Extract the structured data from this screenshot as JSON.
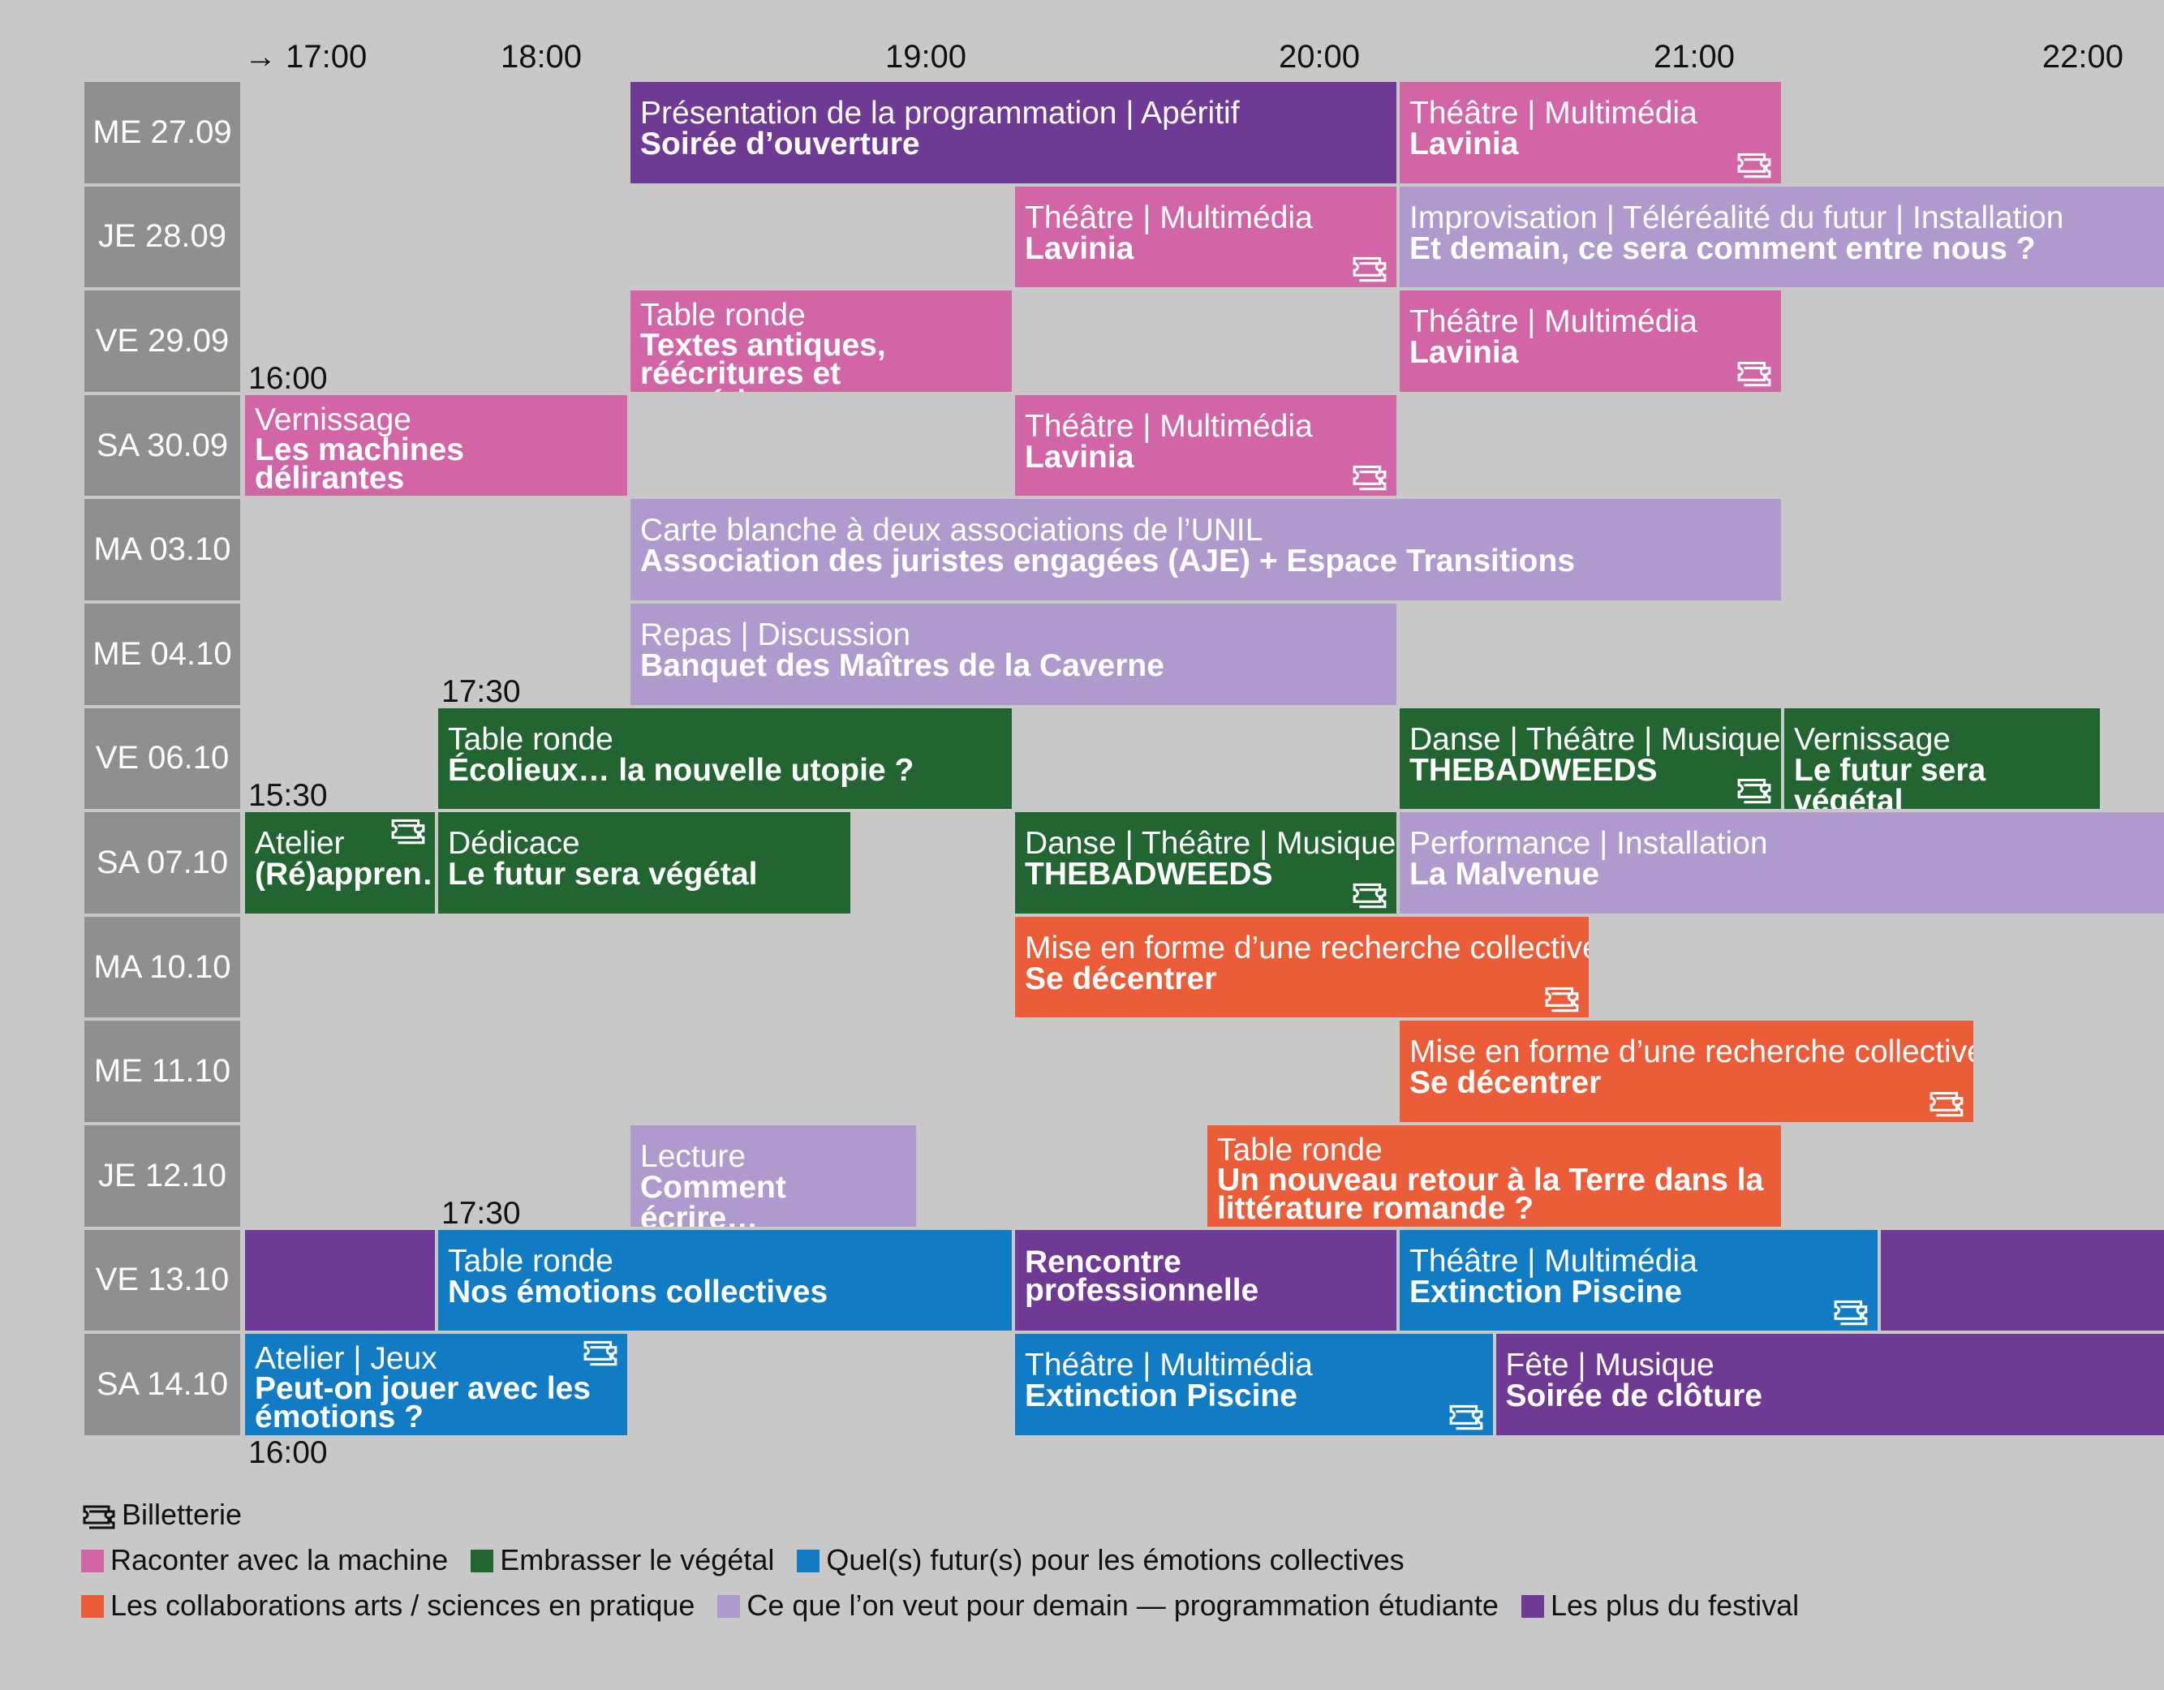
{
  "times": [
    "→ 17:00",
    "18:00",
    "19:00",
    "20:00",
    "21:00",
    "22:00"
  ],
  "colors": {
    "machine": "#d265a6",
    "vegetal": "#226530",
    "emotions": "#117cc4",
    "arts_sciences": "#ea5d38",
    "etudiante": "#b099cc",
    "plus": "#6e3a93",
    "day_bg": "#8f8f8f",
    "page_bg": "#c8c8c8"
  },
  "days": [
    "ME 27.09",
    "JE 28.09",
    "VE 29.09",
    "SA 30.09",
    "MA 03.10",
    "ME 04.10",
    "VE 06.10",
    "SA 07.10",
    "MA 10.10",
    "ME 11.10",
    "JE 12.10",
    "VE 13.10",
    "SA 14.10"
  ],
  "start_notes": [
    {
      "text": "16:00",
      "row": 3,
      "at": 16.0
    },
    {
      "text": "17:30",
      "row": 6,
      "at": 17.5
    },
    {
      "text": "15:30",
      "row": 7,
      "at": 15.5
    },
    {
      "text": "17:30",
      "row": 11,
      "at": 17.5
    },
    {
      "text": "16:00",
      "row": 12,
      "at": 16.0,
      "below": true
    }
  ],
  "events": [
    {
      "row": 0,
      "start": 18.0,
      "end": 20.0,
      "category": "Présentation de la programmation | Apéritif",
      "title": "Soirée d’ouverture",
      "color": "plus",
      "ticket": false
    },
    {
      "row": 0,
      "start": 20.0,
      "end": 21.0,
      "category": "Théâtre | Multimédia",
      "title": "Lavinia",
      "color": "machine",
      "ticket": true
    },
    {
      "row": 1,
      "start": 19.0,
      "end": 20.0,
      "category": "Théâtre | Multimédia",
      "title": "Lavinia",
      "color": "machine",
      "ticket": true
    },
    {
      "row": 1,
      "start": 20.0,
      "end": 22.0,
      "category": "Improvisation | Téléréalité du futur | Installation",
      "title": "Et demain, ce sera comment entre nous ?",
      "color": "etudiante",
      "ticket": false
    },
    {
      "row": 2,
      "start": 18.0,
      "end": 19.0,
      "category": "Table ronde",
      "title": "Textes antiques, réécritures et numérique",
      "color": "machine",
      "ticket": false,
      "multi": true
    },
    {
      "row": 2,
      "start": 20.0,
      "end": 21.0,
      "category": "Théâtre | Multimédia",
      "title": "Lavinia",
      "color": "machine",
      "ticket": true
    },
    {
      "row": 3,
      "start": 16.0,
      "end": 18.0,
      "category": "Vernissage",
      "title": "Les machines délirantes",
      "color": "machine",
      "ticket": false,
      "multi": true
    },
    {
      "row": 3,
      "start": 19.0,
      "end": 20.0,
      "category": "Théâtre | Multimédia",
      "title": "Lavinia",
      "color": "machine",
      "ticket": true
    },
    {
      "row": 4,
      "start": 18.0,
      "end": 21.0,
      "category": "Carte blanche à deux associations de l’UNIL",
      "title": "Association des juristes engagées (AJE) + Espace Transitions",
      "color": "etudiante",
      "ticket": false
    },
    {
      "row": 5,
      "start": 18.0,
      "end": 20.0,
      "category": "Repas | Discussion",
      "title": "Banquet des Maîtres de la Caverne",
      "color": "etudiante",
      "ticket": false
    },
    {
      "row": 6,
      "start": 17.5,
      "end": 19.0,
      "category": "Table ronde",
      "title": "Écolieux… la nouvelle utopie ?",
      "color": "vegetal",
      "ticket": false
    },
    {
      "row": 6,
      "start": 20.0,
      "end": 21.0,
      "category": "Danse | Théâtre | Musique",
      "title": "THEBADWEEDS",
      "color": "vegetal",
      "ticket": true
    },
    {
      "row": 6,
      "start": 21.0,
      "end": 21.83,
      "category": "Vernissage",
      "title": "Le futur sera végétal",
      "color": "vegetal",
      "ticket": false
    },
    {
      "row": 7,
      "start": 15.5,
      "end": 17.5,
      "category": "Atelier",
      "title": "(Ré)appren…",
      "color": "vegetal",
      "ticket": true,
      "ticket_top": true
    },
    {
      "row": 7,
      "start": 17.5,
      "end": 18.58,
      "category": "Dédicace",
      "title": "Le futur sera végétal",
      "color": "vegetal",
      "ticket": false
    },
    {
      "row": 7,
      "start": 19.0,
      "end": 20.0,
      "category": "Danse | Théâtre | Musique",
      "title": "THEBADWEEDS",
      "color": "vegetal",
      "ticket": true
    },
    {
      "row": 7,
      "start": 20.0,
      "end": 22.0,
      "category": "Performance | Installation",
      "title": "La Malvenue",
      "color": "etudiante",
      "ticket": false
    },
    {
      "row": 8,
      "start": 19.0,
      "end": 20.5,
      "category": "Mise en forme d’une recherche collective",
      "title": "Se décentrer",
      "color": "arts_sciences",
      "ticket": true
    },
    {
      "row": 9,
      "start": 20.0,
      "end": 21.5,
      "category": "Mise en forme d’une recherche collective",
      "title": "Se décentrer",
      "color": "arts_sciences",
      "ticket": true
    },
    {
      "row": 10,
      "start": 18.0,
      "end": 18.75,
      "category": "Lecture",
      "title": "Comment écrire…",
      "color": "etudiante",
      "ticket": false
    },
    {
      "row": 10,
      "start": 19.5,
      "end": 21.0,
      "category": "Table ronde",
      "title": "Un nouveau retour à la Terre dans la littérature romande ?",
      "color": "arts_sciences",
      "ticket": false,
      "multi": true
    },
    {
      "row": 11,
      "start": 15.5,
      "end": 17.5,
      "category": "",
      "title": "",
      "color": "plus",
      "ticket": false
    },
    {
      "row": 11,
      "start": 17.5,
      "end": 19.0,
      "category": "Table ronde",
      "title": "Nos émotions collectives",
      "color": "emotions",
      "ticket": false
    },
    {
      "row": 11,
      "start": 19.0,
      "end": 20.0,
      "category": "",
      "title": "Rencontre professionnelle",
      "color": "plus",
      "ticket": false,
      "multi": true
    },
    {
      "row": 11,
      "start": 20.0,
      "end": 21.25,
      "category": "Théâtre | Multimédia",
      "title": "Extinction Piscine",
      "color": "emotions",
      "ticket": true
    },
    {
      "row": 11,
      "start": 21.25,
      "end": 22.0,
      "category": "",
      "title": "",
      "color": "plus",
      "ticket": false
    },
    {
      "row": 12,
      "start": 16.0,
      "end": 18.0,
      "category": "Atelier | Jeux",
      "title": "Peut-on jouer avec les émotions ?",
      "color": "emotions",
      "ticket": true,
      "ticket_top": true,
      "multi": true
    },
    {
      "row": 12,
      "start": 19.0,
      "end": 20.25,
      "category": "Théâtre | Multimédia",
      "title": "Extinction Piscine",
      "color": "emotions",
      "ticket": true
    },
    {
      "row": 12,
      "start": 20.25,
      "end": 22.0,
      "category": "Fête | Musique",
      "title": "Soirée de clôture",
      "color": "plus",
      "ticket": false
    }
  ],
  "legend": {
    "ticket_label": "Billetterie",
    "row1": [
      {
        "label": "Raconter avec la machine",
        "color": "#d265a6"
      },
      {
        "label": "Embrasser le végétal",
        "color": "#226530"
      },
      {
        "label": "Quel(s) futur(s) pour les émotions collectives",
        "color": "#117cc4"
      }
    ],
    "row2": [
      {
        "label": "Les collaborations arts / sciences en pratique",
        "color": "#ea5d38"
      },
      {
        "label": "Ce que l’on veut pour demain — programmation étudiante",
        "color": "#b099cc"
      },
      {
        "label": "Les plus du festival",
        "color": "#6e3a93"
      }
    ]
  }
}
